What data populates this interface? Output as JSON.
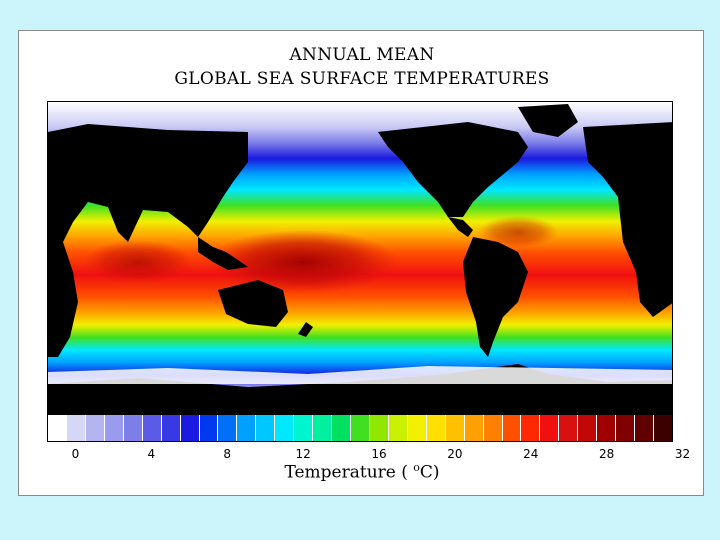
{
  "slide": {
    "background": "#ccf4fb"
  },
  "map": {
    "title_line1": "ANNUAL MEAN",
    "title_line2": "GLOBAL SEA SURFACE TEMPERATURES",
    "land_color": "#000000",
    "ice_color": "#ffffff"
  },
  "colorbar": {
    "axis_label_prefix": "Temperature (",
    "unit_superscript": "o",
    "unit_suffix": "C)",
    "ticks": [
      "0",
      "4",
      "8",
      "12",
      "16",
      "20",
      "24",
      "28",
      "32"
    ],
    "colors": [
      "#ffffff",
      "#d6d6f7",
      "#b4b4f0",
      "#9a9aee",
      "#7e7ee9",
      "#5b5be8",
      "#3838e4",
      "#1a1ae0",
      "#0038f0",
      "#0070f8",
      "#00a0ff",
      "#00c8ff",
      "#00e8ff",
      "#00f4d0",
      "#00f0a0",
      "#00e060",
      "#40e020",
      "#90e800",
      "#c8f000",
      "#f0f000",
      "#ffe000",
      "#ffc000",
      "#ffa000",
      "#ff8000",
      "#ff5000",
      "#ff2800",
      "#f01010",
      "#d81010",
      "#c00808",
      "#a00000",
      "#800000",
      "#600000",
      "#3c0000"
    ]
  }
}
